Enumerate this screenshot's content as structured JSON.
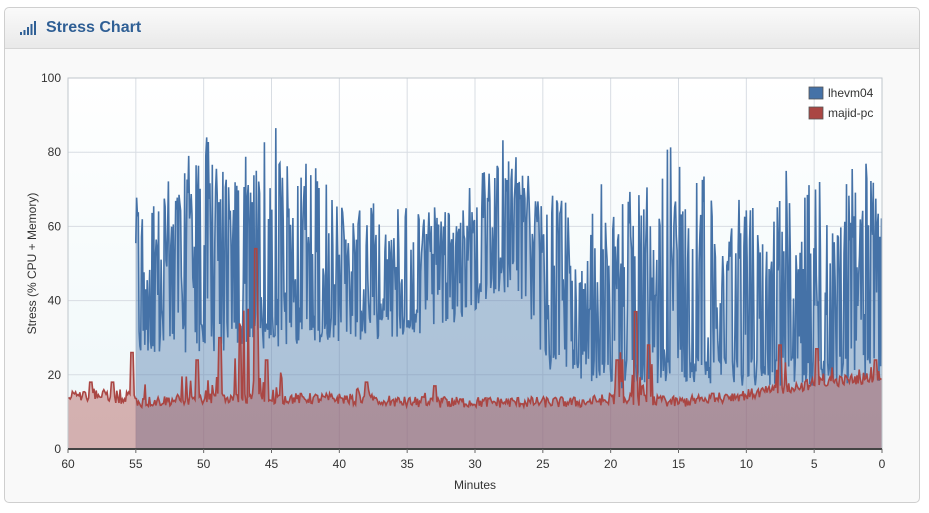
{
  "header": {
    "title": "Stress Chart",
    "icon": "signal-bars-icon"
  },
  "colors": {
    "series1": "#4572a7",
    "series2": "#aa4643",
    "title": "#2f5f95"
  },
  "chart_data": {
    "type": "area",
    "title": "",
    "xlabel": "Minutes",
    "ylabel": "Stress (% CPU + Memory)",
    "xlim": [
      60,
      0
    ],
    "ylim": [
      0,
      100
    ],
    "x_ticks": [
      "60",
      "55",
      "50",
      "45",
      "40",
      "35",
      "30",
      "25",
      "20",
      "15",
      "10",
      "5",
      "0"
    ],
    "y_ticks": [
      "0",
      "20",
      "40",
      "60",
      "80",
      "100"
    ],
    "grid": true,
    "legend_position": "top-right",
    "series": [
      {
        "name": "lhevm04",
        "color": "#4572a7",
        "range": [
          55,
          0
        ],
        "baseline": [
          [
            55,
            25
          ],
          [
            50,
            26
          ],
          [
            45,
            27
          ],
          [
            40,
            29
          ],
          [
            35,
            30
          ],
          [
            30,
            36
          ],
          [
            27,
            44
          ],
          [
            25,
            22
          ],
          [
            20,
            16
          ],
          [
            15,
            18
          ],
          [
            10,
            17
          ],
          [
            5,
            17
          ],
          [
            0,
            18
          ]
        ],
        "peaks": [
          [
            54.3,
            74
          ],
          [
            52.6,
            73
          ],
          [
            51,
            82
          ],
          [
            50,
            88
          ],
          [
            49.2,
            86
          ],
          [
            47,
            82
          ],
          [
            45.5,
            84
          ],
          [
            44.6,
            88
          ],
          [
            42,
            85
          ],
          [
            40.6,
            72
          ],
          [
            38,
            70
          ],
          [
            35.5,
            68
          ],
          [
            33.5,
            69
          ],
          [
            31.5,
            70
          ],
          [
            29.5,
            79
          ],
          [
            27.8,
            86
          ],
          [
            26,
            78
          ],
          [
            24,
            75
          ],
          [
            20.5,
            76
          ],
          [
            18,
            84
          ],
          [
            15.5,
            86
          ],
          [
            13.5,
            85
          ],
          [
            10,
            79
          ],
          [
            7,
            76
          ],
          [
            5,
            79
          ],
          [
            2,
            81
          ],
          [
            1.2,
            81
          ],
          [
            0,
            72
          ]
        ]
      },
      {
        "name": "majid-pc",
        "color": "#aa4643",
        "range": [
          60,
          0
        ],
        "baseline": [
          [
            60,
            14
          ],
          [
            56,
            13
          ],
          [
            55.2,
            14
          ],
          [
            55,
            12
          ],
          [
            50,
            13
          ],
          [
            45,
            13
          ],
          [
            40,
            13
          ],
          [
            35,
            12
          ],
          [
            30,
            12
          ],
          [
            25,
            12
          ],
          [
            22,
            12
          ],
          [
            20,
            13
          ],
          [
            15,
            12
          ],
          [
            10,
            14
          ],
          [
            5,
            17
          ],
          [
            0,
            19
          ]
        ],
        "peaks": [
          [
            58.3,
            18
          ],
          [
            56.7,
            18
          ],
          [
            55.3,
            26
          ],
          [
            50.5,
            24
          ],
          [
            48.8,
            30
          ],
          [
            46.2,
            54
          ],
          [
            45.4,
            24
          ],
          [
            38,
            18
          ],
          [
            33,
            17
          ],
          [
            19.5,
            24
          ],
          [
            18.2,
            37
          ],
          [
            17.2,
            28
          ],
          [
            12.5,
            15
          ],
          [
            7.5,
            28
          ],
          [
            4.8,
            27
          ],
          [
            0.5,
            24
          ]
        ]
      }
    ]
  }
}
